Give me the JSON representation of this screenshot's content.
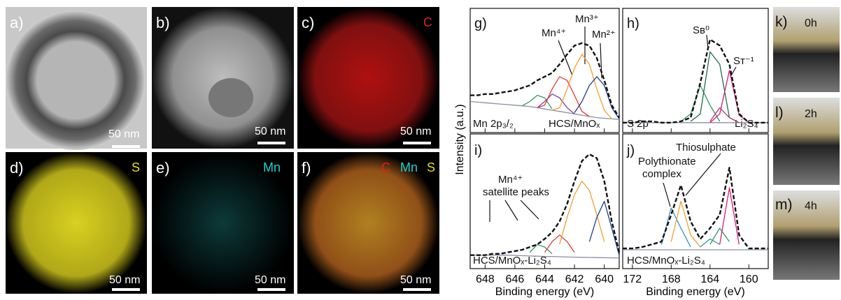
{
  "panels": [
    {
      "label": "a)",
      "scale_bar": "50 nm"
    },
    {
      "label": "b)",
      "scale_bar": "50 nm"
    },
    {
      "label": "c)",
      "element": "C",
      "scale_bar": "50 nm"
    },
    {
      "label": "d)",
      "element": "S",
      "scale_bar": "50 nm"
    },
    {
      "label": "e)",
      "element": "Mn",
      "scale_bar": "50 nm"
    },
    {
      "label": "f)",
      "elements": [
        "C",
        "Mn",
        "S"
      ],
      "scale_bar": "50 nm"
    }
  ],
  "photos": [
    {
      "label": "k)",
      "time": "0h"
    },
    {
      "label": "l)",
      "time": "2h"
    },
    {
      "label": "m)",
      "time": "4h"
    }
  ],
  "y_label": "Intensity (a.u.)",
  "chart_data": [
    {
      "type": "line",
      "label": "g)",
      "annotations": [
        "Mn 2p₃/₂",
        "HCS/MnOₓ",
        "Mn⁴⁺",
        "Mn³⁺",
        "Mn²⁺"
      ],
      "xlim": [
        649,
        639
      ],
      "xticks": [
        648,
        646,
        644,
        642,
        640
      ],
      "tick_labels": false,
      "ylim": [
        0,
        100
      ],
      "x": [
        649,
        648.5,
        648,
        647.5,
        647,
        646.5,
        646,
        645.5,
        645,
        644.5,
        644,
        643.5,
        643,
        642.5,
        642,
        641.5,
        641,
        640.5,
        640,
        639.5,
        639
      ],
      "series": [
        {
          "color": "#8a8fa0",
          "values": [
            25,
            24.5,
            24,
            23.5,
            23,
            22.5,
            22,
            21.5,
            21,
            20,
            19,
            18,
            17,
            16,
            15,
            14,
            13,
            12,
            11.5,
            11,
            10.5
          ]
        },
        {
          "color": "#2e9a5a",
          "values": [
            null,
            null,
            null,
            null,
            null,
            null,
            null,
            21.5,
            25,
            30,
            28,
            19,
            null,
            null,
            null,
            null,
            null,
            null,
            null,
            null,
            null
          ]
        },
        {
          "color": "#7a3fa0",
          "values": [
            null,
            null,
            null,
            null,
            null,
            null,
            null,
            null,
            null,
            20,
            25,
            31,
            28,
            20,
            15,
            null,
            null,
            null,
            null,
            null,
            null
          ]
        },
        {
          "color": "#e03a3a",
          "values": [
            null,
            null,
            null,
            null,
            null,
            null,
            null,
            null,
            null,
            20,
            22,
            35,
            45,
            42,
            30,
            17,
            13,
            null,
            null,
            null,
            null
          ]
        },
        {
          "color": "#f0a030",
          "values": [
            null,
            null,
            null,
            null,
            null,
            null,
            null,
            null,
            null,
            null,
            null,
            18,
            20,
            35,
            52,
            63,
            55,
            35,
            18,
            11,
            null
          ]
        },
        {
          "color": "#1e3f8a",
          "values": [
            null,
            null,
            null,
            null,
            null,
            null,
            null,
            null,
            null,
            null,
            null,
            null,
            null,
            null,
            16,
            25,
            38,
            45,
            38,
            20,
            11
          ]
        },
        {
          "color": "#111111",
          "dashed": true,
          "values": [
            30,
            30,
            31,
            31,
            32,
            33,
            34,
            36,
            38,
            42,
            45,
            48,
            55,
            63,
            70,
            72,
            70,
            60,
            42,
            22,
            12
          ]
        }
      ]
    },
    {
      "type": "line",
      "label": "h)",
      "annotations": [
        "S 2p",
        "Li₂S₄",
        "Sʙ⁰",
        "Sᴛ⁻¹"
      ],
      "xlim": [
        173,
        158
      ],
      "xticks": [
        172,
        168,
        164,
        160
      ],
      "tick_labels": false,
      "ylim": [
        0,
        100
      ],
      "x": [
        173,
        172,
        171,
        170,
        169,
        168,
        167,
        166,
        165,
        164,
        163,
        162,
        161,
        160,
        159,
        158
      ],
      "series": [
        {
          "color": "#8a8fa0",
          "values": [
            8,
            8,
            8,
            8,
            8,
            8,
            8,
            8,
            8,
            8,
            8,
            8,
            8,
            8,
            8,
            8
          ]
        },
        {
          "color": "#2e9a5a",
          "values": [
            null,
            null,
            null,
            null,
            null,
            null,
            9,
            15,
            38,
            22,
            9,
            null,
            null,
            null,
            null,
            null
          ]
        },
        {
          "color": "#1f6e4a",
          "values": [
            null,
            null,
            null,
            null,
            null,
            null,
            null,
            9,
            15,
            65,
            55,
            12,
            8,
            null,
            null,
            null
          ]
        },
        {
          "color": "#c0306a",
          "values": [
            null,
            null,
            null,
            null,
            null,
            null,
            null,
            null,
            null,
            9,
            20,
            12,
            8,
            null,
            null,
            null
          ]
        },
        {
          "color": "#d81b7a",
          "values": [
            null,
            null,
            null,
            null,
            null,
            null,
            null,
            null,
            null,
            8,
            15,
            50,
            14,
            8,
            null,
            null
          ]
        },
        {
          "color": "#111111",
          "dashed": true,
          "values": [
            8,
            8,
            9,
            9,
            8,
            8,
            9,
            12,
            40,
            75,
            70,
            55,
            15,
            8,
            8,
            8
          ]
        }
      ]
    },
    {
      "type": "line",
      "label": "i)",
      "annotations": [
        "Mn⁴⁺",
        "satellite peaks",
        "HCS/MnOₓ-Li₂S₄"
      ],
      "xlim": [
        649,
        639
      ],
      "xticks": [
        648,
        646,
        644,
        642,
        640
      ],
      "tick_labels": true,
      "xlabel": "Binding energy (eV)",
      "ylim": [
        0,
        100
      ],
      "x": [
        649,
        648.5,
        648,
        647.5,
        647,
        646.5,
        646,
        645.5,
        645,
        644.5,
        644,
        643.5,
        643,
        642.5,
        642,
        641.5,
        641,
        640.5,
        640,
        639.5,
        639
      ],
      "series": [
        {
          "color": "#8a8fa0",
          "values": [
            10,
            10,
            10,
            10,
            10,
            10,
            9.8,
            9.6,
            9.4,
            9.2,
            9,
            9,
            8.8,
            8.6,
            8.5,
            8.4,
            8.3,
            8.2,
            8.1,
            8,
            8
          ]
        },
        {
          "color": "#2e9a5a",
          "values": [
            null,
            null,
            null,
            null,
            null,
            null,
            null,
            null,
            12,
            18,
            16,
            11,
            null,
            null,
            null,
            null,
            null,
            null,
            null,
            null,
            null
          ]
        },
        {
          "color": "#e03a3a",
          "values": [
            null,
            null,
            null,
            null,
            null,
            null,
            null,
            null,
            null,
            null,
            12,
            20,
            25,
            20,
            12,
            null,
            null,
            null,
            null,
            null,
            null
          ]
        },
        {
          "color": "#f0a030",
          "values": [
            null,
            null,
            null,
            null,
            null,
            null,
            null,
            null,
            null,
            null,
            null,
            null,
            18,
            38,
            55,
            65,
            58,
            40,
            20,
            null,
            null
          ]
        },
        {
          "color": "#1e3f8a",
          "values": [
            null,
            null,
            null,
            null,
            null,
            null,
            null,
            null,
            null,
            null,
            null,
            null,
            null,
            null,
            null,
            null,
            20,
            38,
            50,
            30,
            10
          ]
        },
        {
          "color": "#111111",
          "dashed": true,
          "values": [
            10,
            10,
            10,
            11,
            11,
            12,
            13,
            14,
            16,
            18,
            22,
            27,
            35,
            48,
            65,
            80,
            85,
            82,
            65,
            35,
            12
          ]
        }
      ]
    },
    {
      "type": "line",
      "label": "j)",
      "annotations": [
        "Thiosulphate",
        "Polythionate",
        "complex",
        "HCS/MnOₓ-Li₂S₄"
      ],
      "xlim": [
        173,
        158
      ],
      "xticks": [
        172,
        168,
        164,
        160
      ],
      "tick_labels": true,
      "xlabel": "Binding energy (eV)",
      "ylim": [
        0,
        100
      ],
      "x": [
        173,
        172,
        171,
        170,
        169,
        168,
        167,
        166,
        165,
        164,
        163,
        162,
        161,
        160,
        159,
        158
      ],
      "series": [
        {
          "color": "#8a8fa0",
          "values": [
            14,
            14,
            14,
            14,
            14,
            14,
            14,
            14,
            14,
            14,
            14,
            14,
            14,
            14,
            14,
            14
          ]
        },
        {
          "color": "#3a8fd0",
          "values": [
            null,
            null,
            null,
            null,
            18,
            45,
            30,
            16,
            null,
            null,
            null,
            null,
            null,
            null,
            null,
            null
          ]
        },
        {
          "color": "#f0a030",
          "values": [
            null,
            null,
            null,
            null,
            null,
            20,
            50,
            25,
            16,
            null,
            null,
            null,
            null,
            null,
            null,
            null
          ]
        },
        {
          "color": "#2aa0a0",
          "values": [
            null,
            null,
            null,
            null,
            null,
            null,
            null,
            null,
            16,
            22,
            18,
            null,
            null,
            null,
            null,
            null
          ]
        },
        {
          "color": "#2e9a5a",
          "values": [
            null,
            null,
            null,
            null,
            null,
            null,
            null,
            null,
            null,
            18,
            30,
            20,
            null,
            null,
            null,
            null
          ]
        },
        {
          "color": "#d81b7a",
          "values": [
            null,
            null,
            null,
            null,
            null,
            null,
            null,
            null,
            null,
            null,
            18,
            60,
            18,
            null,
            null,
            null
          ]
        },
        {
          "color": "#111111",
          "dashed": true,
          "values": [
            15,
            15,
            16,
            18,
            20,
            40,
            62,
            35,
            22,
            30,
            40,
            75,
            25,
            15,
            15,
            15
          ]
        }
      ]
    }
  ]
}
